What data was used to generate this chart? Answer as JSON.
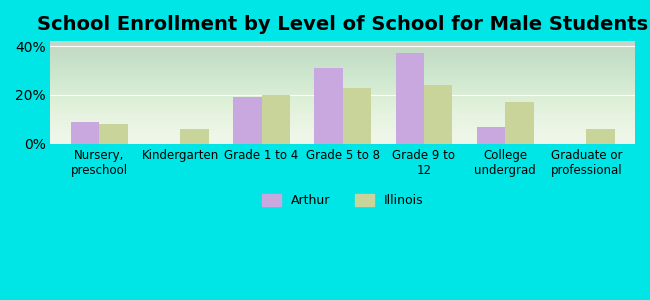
{
  "title": "School Enrollment by Level of School for Male Students",
  "categories": [
    "Nursery,\npreschool",
    "Kindergarten",
    "Grade 1 to 4",
    "Grade 5 to 8",
    "Grade 9 to\n12",
    "College\nundergrad",
    "Graduate or\nprofessional"
  ],
  "arthur_values": [
    9,
    0,
    19,
    31,
    37,
    7,
    0
  ],
  "illinois_values": [
    8,
    6,
    20,
    23,
    24,
    17,
    6
  ],
  "arthur_color": "#c9a8e0",
  "illinois_color": "#c8d49a",
  "background_color": "#00e5e5",
  "ylim": [
    0,
    42
  ],
  "yticks": [
    0,
    20,
    40
  ],
  "ytick_labels": [
    "0%",
    "20%",
    "40%"
  ],
  "title_fontsize": 14,
  "legend_labels": [
    "Arthur",
    "Illinois"
  ],
  "bar_width": 0.35
}
